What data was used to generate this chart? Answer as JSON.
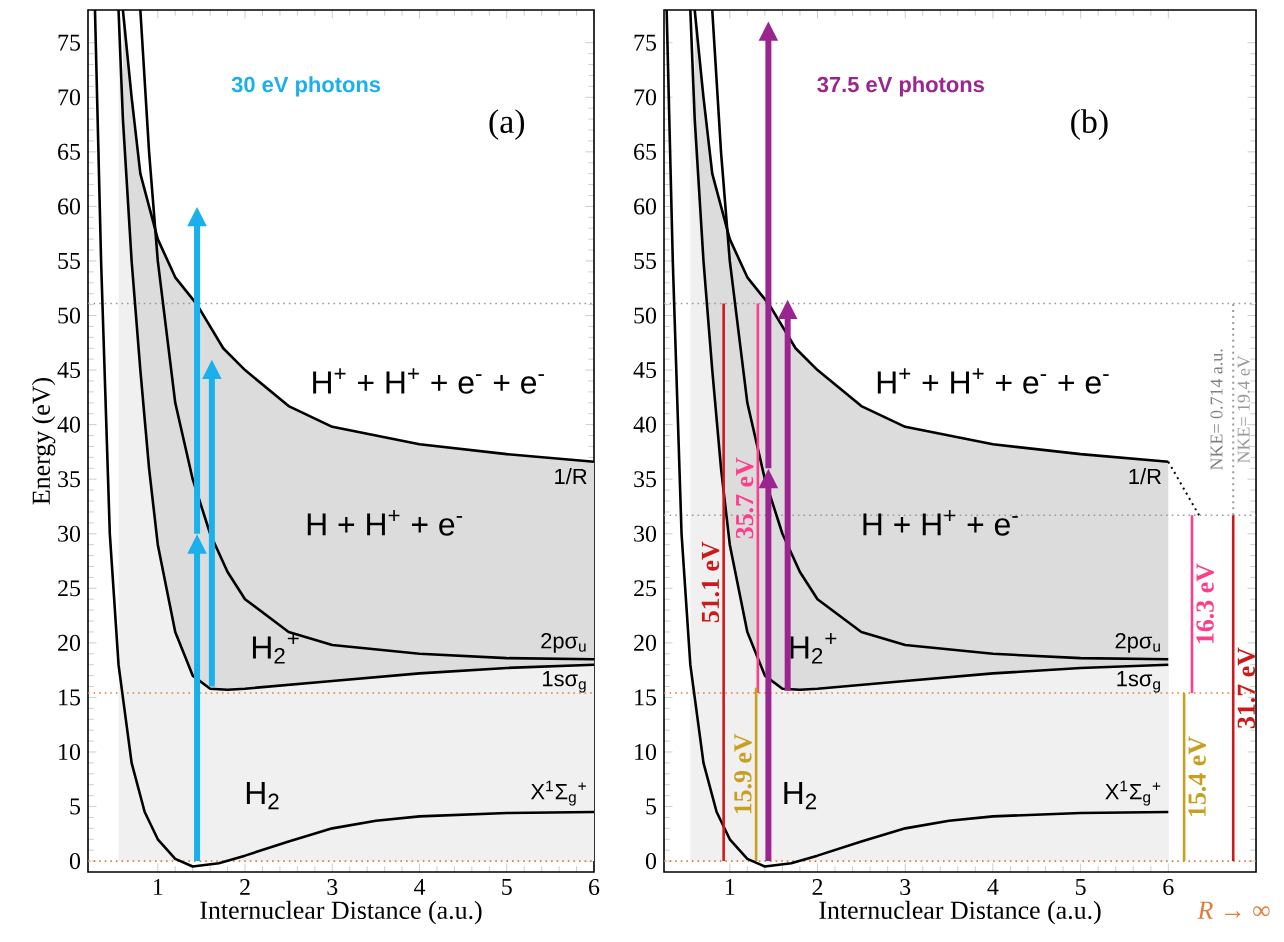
{
  "chart_data": [
    {
      "type": "line",
      "xlabel": "Internuclear Distance (a.u.)",
      "ylabel": "Energy (eV)",
      "xlim": [
        0.2,
        6
      ],
      "ylim": [
        -1,
        78
      ],
      "xticks": [
        1,
        2,
        3,
        4,
        5,
        6
      ],
      "yticks": [
        0,
        5,
        10,
        15,
        20,
        25,
        30,
        35,
        40,
        45,
        50,
        55,
        60,
        65,
        70,
        75
      ],
      "ref_lines": [
        {
          "axis": "y",
          "value": 51.1,
          "color": "#999999",
          "line_style": "dotted"
        },
        {
          "axis": "y",
          "value": 15.4,
          "color": "#e07b39",
          "line_style": "dotted"
        },
        {
          "axis": "y",
          "value": 0,
          "color": "#e07b39",
          "line_style": "dotted"
        }
      ],
      "series": [
        {
          "type": "area",
          "color": "#dcdcdc",
          "name": "1/R",
          "x": [
            0.6,
            0.7,
            0.8,
            1.0,
            1.2,
            1.45,
            1.75,
            2,
            2.5,
            3,
            4,
            5,
            6
          ],
          "values": [
            78,
            70,
            63,
            57,
            53.5,
            51,
            47,
            45,
            41.7,
            39.8,
            38.2,
            37.3,
            36.6
          ]
        },
        {
          "type": "area",
          "color": "#f0f0f0",
          "name": "1sσ$_{g}$",
          "x": [
            0.55,
            0.6,
            0.7,
            0.8,
            0.9,
            1.0,
            1.2,
            1.4,
            1.6,
            1.8,
            2,
            3,
            4,
            5,
            6
          ],
          "values": [
            78,
            68,
            55,
            45,
            36,
            29,
            21,
            17,
            15.8,
            15.7,
            15.8,
            16.5,
            17.2,
            17.7,
            18
          ]
        },
        {
          "color": "#000000",
          "name": "X$^{1}$Σ$_{g}$$^{+}$",
          "x": [
            0.28,
            0.35,
            0.45,
            0.55,
            0.7,
            0.85,
            1.0,
            1.2,
            1.4,
            1.7,
            2.0,
            2.5,
            3,
            3.5,
            4,
            5,
            6
          ],
          "values": [
            78,
            55,
            30,
            18,
            9,
            4.5,
            2,
            0.2,
            -0.5,
            -0.2,
            0.5,
            1.8,
            3.0,
            3.7,
            4.1,
            4.4,
            4.5
          ]
        },
        {
          "color": "#000000",
          "name": "2pσ$_{u}$",
          "x": [
            0.8,
            0.9,
            1.0,
            1.2,
            1.4,
            1.6,
            1.8,
            2,
            2.5,
            3,
            4,
            5,
            6
          ],
          "values": [
            78,
            65,
            55,
            42,
            35,
            30,
            26.5,
            24,
            21,
            19.8,
            19,
            18.6,
            18.5
          ]
        }
      ],
      "annotations": [
        "30 eV photons",
        "(a)",
        "H$^{+}$ + H$^{+}$ + e$^{-}$ + e$^{-}$",
        "H + H$^{+}$ + e$^{-}$",
        "H$_{2}$$^{+}$",
        "H$_{2}$"
      ]
    },
    {
      "type": "line",
      "xlabel": "Internuclear Distance (a.u.)",
      "xlim": [
        0.25,
        7.0
      ],
      "ylim": [
        -1,
        78
      ],
      "xticks": [
        1,
        2,
        3,
        4,
        5,
        6
      ],
      "yticks": [
        0,
        5,
        10,
        15,
        20,
        25,
        30,
        35,
        40,
        45,
        50,
        55,
        60,
        65,
        70,
        75
      ],
      "ref_lines": [
        {
          "axis": "y",
          "value": 51.1,
          "color": "#999999",
          "line_style": "dotted"
        },
        {
          "axis": "y",
          "value": 31.7,
          "color": "#999999",
          "line_style": "dotted"
        },
        {
          "axis": "y",
          "value": 15.4,
          "color": "#e07b39",
          "line_style": "dotted"
        },
        {
          "axis": "y",
          "value": 0,
          "color": "#e07b39",
          "line_style": "dotted"
        }
      ],
      "series": [
        {
          "type": "area",
          "color": "#dcdcdc",
          "name": "1/R",
          "x": [
            0.6,
            0.7,
            0.8,
            1.0,
            1.2,
            1.45,
            1.75,
            2,
            2.5,
            3,
            4,
            5,
            6
          ],
          "values": [
            78,
            70,
            63,
            57,
            53.5,
            51,
            47,
            45,
            41.7,
            39.8,
            38.2,
            37.3,
            36.6
          ]
        },
        {
          "type": "area",
          "color": "#f0f0f0",
          "name": "1sσ$_{g}$",
          "x": [
            0.55,
            0.6,
            0.7,
            0.8,
            0.9,
            1.0,
            1.2,
            1.4,
            1.6,
            1.8,
            2,
            3,
            4,
            5,
            6
          ],
          "values": [
            78,
            68,
            55,
            45,
            36,
            29,
            21,
            17,
            15.8,
            15.7,
            15.8,
            16.5,
            17.2,
            17.7,
            18
          ]
        },
        {
          "color": "#000000",
          "name": "X$^{1}$Σ$_{g}$$^{+}$",
          "x": [
            0.28,
            0.35,
            0.45,
            0.55,
            0.7,
            0.85,
            1.0,
            1.2,
            1.4,
            1.7,
            2.0,
            2.5,
            3,
            3.5,
            4,
            5,
            6
          ],
          "values": [
            78,
            55,
            30,
            18,
            9,
            4.5,
            2,
            0.2,
            -0.5,
            -0.2,
            0.5,
            1.8,
            3.0,
            3.7,
            4.1,
            4.4,
            4.5
          ]
        },
        {
          "color": "#000000",
          "name": "2pσ$_{u}$",
          "x": [
            0.8,
            0.9,
            1.0,
            1.2,
            1.4,
            1.6,
            1.8,
            2,
            2.5,
            3,
            4,
            5,
            6
          ],
          "values": [
            78,
            65,
            55,
            42,
            35,
            30,
            26.5,
            24,
            21,
            19.8,
            19,
            18.6,
            18.5
          ]
        },
        {
          "color": "#000000",
          "line_style": "dotted",
          "x": [
            6,
            6.35
          ],
          "values": [
            36.6,
            31.7
          ]
        },
        {
          "color": "#cc1a1a",
          "name": "51.1 eV",
          "x": [
            0.93,
            0.93
          ],
          "values": [
            0,
            51.1
          ]
        },
        {
          "color": "#ff3d8b",
          "name": "35.7 eV",
          "x": [
            1.32,
            1.32
          ],
          "values": [
            15.4,
            51.1
          ]
        },
        {
          "color": "#c8a020",
          "name": "15.9 eV",
          "x": [
            1.3,
            1.3
          ],
          "values": [
            0,
            15.9
          ]
        },
        {
          "color": "#ff3d8b",
          "name": "16.3 eV",
          "x": [
            6.27,
            6.27
          ],
          "values": [
            15.4,
            31.7
          ]
        },
        {
          "color": "#c8a020",
          "name": "15.4 eV",
          "x": [
            6.18,
            6.18
          ],
          "values": [
            0,
            15.4
          ]
        },
        {
          "color": "#cc1a1a",
          "name": "31.7 eV",
          "x": [
            6.74,
            6.74
          ],
          "values": [
            0,
            31.7
          ]
        },
        {
          "color": "#999999",
          "line_style": "dotted",
          "name": "NKE= 19.4 eV",
          "x": [
            6.74,
            6.74
          ],
          "values": [
            31.7,
            51.1
          ]
        }
      ],
      "annotations": [
        "37.5 eV photons",
        "(b)",
        "H$^{+}$ + H$^{+}$ + e$^{-}$ + e$^{-}$",
        "H + H$^{+}$ + e$^{-}$",
        "H$_{2}$$^{+}$",
        "H$_{2}$",
        "NKE= 0.714 a.u.",
        "*R* → ∞"
      ]
    }
  ]
}
